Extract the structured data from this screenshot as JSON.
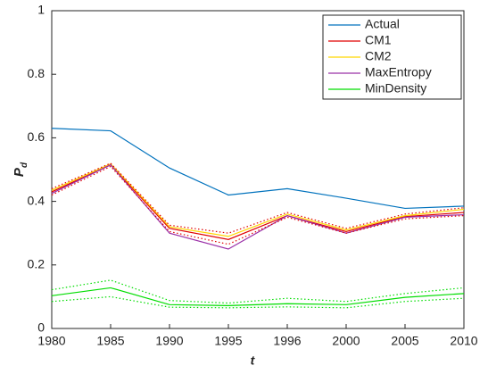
{
  "chart_data": {
    "type": "line",
    "x_label": "t",
    "y_label": {
      "main": "P",
      "sub": "d"
    },
    "categories": [
      "1980",
      "1985",
      "1990",
      "1995",
      "1996",
      "2000",
      "2005",
      "2010"
    ],
    "series": [
      {
        "name": "Actual",
        "color": "#0072bd",
        "style": "solid",
        "values": [
          0.63,
          0.622,
          0.505,
          0.42,
          0.44,
          0.41,
          0.378,
          0.385
        ]
      },
      {
        "name": "CM1",
        "color": "#e00000",
        "style": "solid",
        "values": [
          0.43,
          0.515,
          0.315,
          0.28,
          0.355,
          0.305,
          0.352,
          0.365
        ]
      },
      {
        "name": "CM2",
        "color": "#ffd700",
        "style": "solid",
        "values": [
          0.435,
          0.518,
          0.32,
          0.29,
          0.36,
          0.31,
          0.355,
          0.375
        ]
      },
      {
        "name": "MaxEntropy",
        "color": "#9b30a8",
        "style": "solid",
        "values": [
          0.425,
          0.515,
          0.3,
          0.25,
          0.355,
          0.3,
          0.35,
          0.358
        ]
      },
      {
        "name": "MinDensity",
        "color": "#00dd00",
        "style": "solid",
        "values": [
          0.103,
          0.128,
          0.075,
          0.072,
          0.078,
          0.075,
          0.098,
          0.11
        ]
      },
      {
        "color": "#e00000",
        "style": "dotted",
        "values": [
          0.44,
          0.52,
          0.325,
          0.3,
          0.365,
          0.315,
          0.36,
          0.38
        ]
      },
      {
        "color": "#e00000",
        "style": "dotted",
        "values": [
          0.42,
          0.51,
          0.305,
          0.265,
          0.35,
          0.3,
          0.345,
          0.355
        ]
      },
      {
        "color": "#00dd00",
        "style": "dotted",
        "values": [
          0.122,
          0.152,
          0.088,
          0.08,
          0.095,
          0.085,
          0.11,
          0.128
        ]
      },
      {
        "color": "#00dd00",
        "style": "dotted",
        "values": [
          0.085,
          0.1,
          0.067,
          0.065,
          0.068,
          0.065,
          0.085,
          0.095
        ]
      }
    ],
    "ylim": [
      0,
      1
    ],
    "yticks": [
      0,
      0.2,
      0.4,
      0.6,
      0.8,
      1
    ],
    "grid": false,
    "legend": "top-right"
  }
}
